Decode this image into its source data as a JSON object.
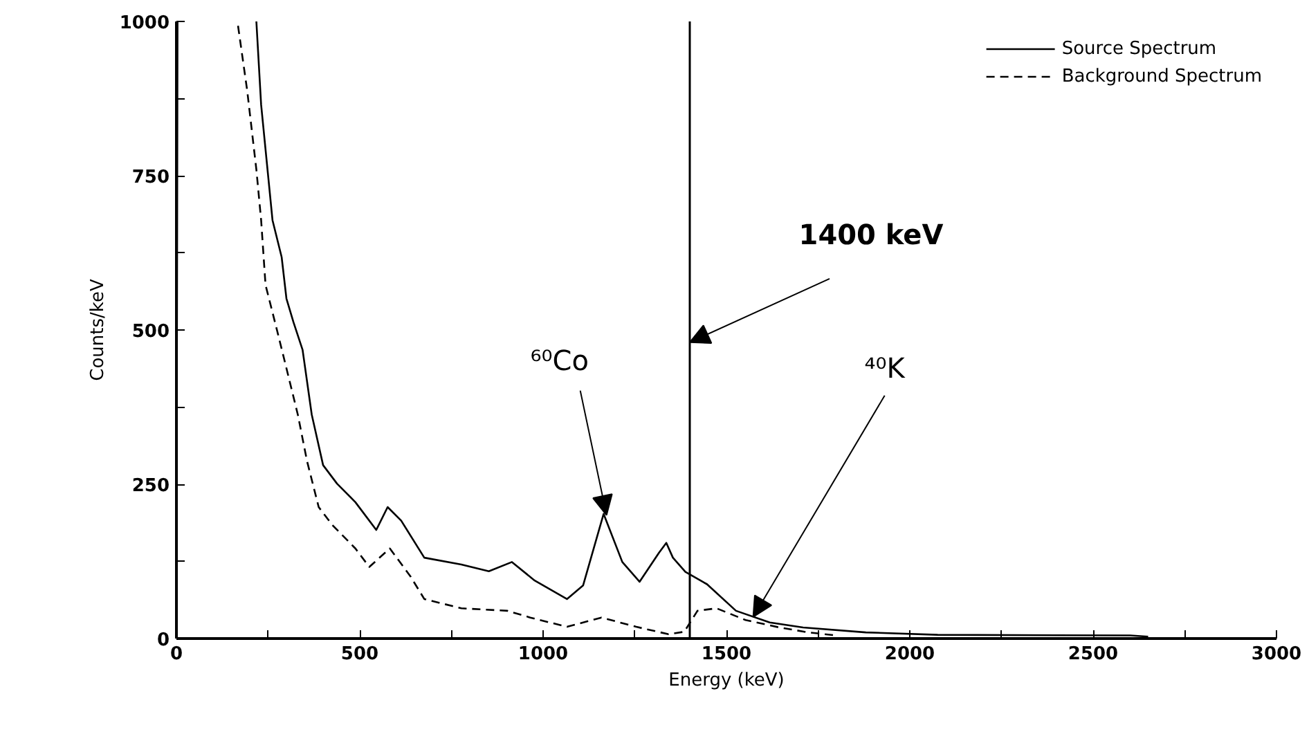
{
  "chart_data": {
    "type": "line",
    "xlabel": "Energy (keV)",
    "ylabel": "Counts/keV",
    "xlim": [
      0,
      3000
    ],
    "ylim": [
      0,
      1000
    ],
    "xticks": [
      0,
      {
        "value": 250,
        "label": null
      },
      500,
      {
        "value": 750,
        "label": null
      },
      1000,
      {
        "value": 1250,
        "label": null
      },
      1500,
      {
        "value": 1750,
        "label": null
      },
      2000,
      {
        "value": 2250,
        "label": null
      },
      2500,
      {
        "value": 2750,
        "label": null
      },
      3000
    ],
    "yticks": [
      0,
      {
        "value": 125,
        "label": null
      },
      250,
      {
        "value": 375,
        "label": null
      },
      500,
      {
        "value": 625,
        "label": null
      },
      750,
      {
        "value": 875,
        "label": null
      },
      1000
    ],
    "grid": false,
    "legend": "top right",
    "marker": "none",
    "series": [
      {
        "name": "Source Spectrum",
        "color": "#000000",
        "line_style": "solid",
        "x": [
          0,
          3,
          5,
          218,
          231,
          262,
          287,
          300,
          319,
          344,
          369,
          400,
          438,
          488,
          545,
          576,
          613,
          676,
          777,
          852,
          915,
          977,
          1065,
          1109,
          1165,
          1216,
          1263,
          1316,
          1336,
          1354,
          1388,
          1447,
          1526,
          1618,
          1709,
          1880,
          2076,
          2601,
          2650
        ],
        "values": [
          0,
          1000,
          null,
          1000,
          865,
          678,
          618,
          551,
          513,
          468,
          363,
          281,
          251,
          221,
          176,
          213,
          191,
          131,
          120,
          109,
          124,
          94,
          64,
          86,
          202,
          124,
          92,
          139,
          155,
          131,
          108,
          88,
          45,
          26,
          18,
          10,
          6,
          5,
          3
        ]
      },
      {
        "name": "Background Spectrum",
        "color": "#000000",
        "line_style": "dashed",
        "x": [
          168,
          193,
          218,
          231,
          243,
          275,
          300,
          331,
          356,
          388,
          425,
          488,
          526,
          582,
          638,
          676,
          777,
          902,
          965,
          1065,
          1159,
          1254,
          1342,
          1385,
          1421,
          1473,
          1552,
          1644,
          1723,
          1800
        ],
        "values": [
          993,
          888,
          760,
          678,
          573,
          498,
          438,
          363,
          288,
          213,
          184,
          146,
          116,
          146,
          101,
          64,
          49,
          45,
          34,
          19,
          34,
          19,
          7,
          11,
          45,
          49,
          30,
          18,
          10,
          5
        ]
      }
    ],
    "ref_lines": [
      {
        "axis": "x",
        "value": 1400,
        "label": "1400 keV",
        "color": "#000000",
        "line_style": "solid"
      }
    ],
    "annotations": [
      {
        "text": "⁶⁰Co",
        "x": 1173,
        "y": 200
      },
      {
        "text": "⁴⁰K",
        "x": 1573,
        "y": 35
      }
    ]
  }
}
